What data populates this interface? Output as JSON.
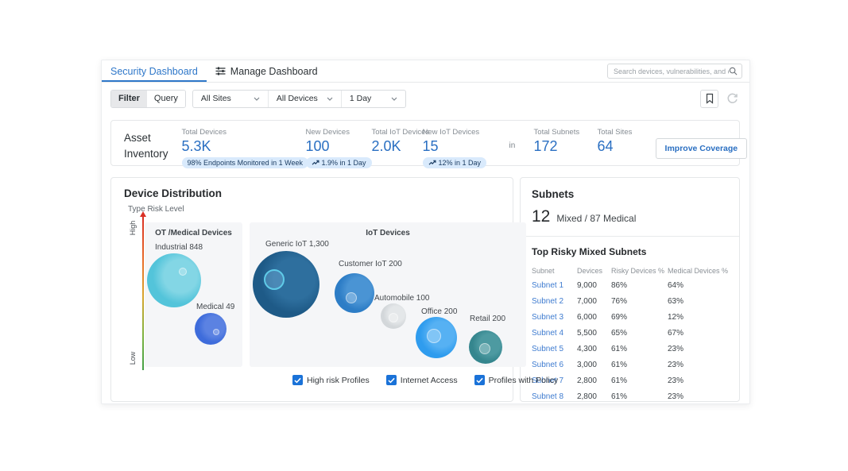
{
  "tabs": {
    "security": "Security Dashboard",
    "manage": "Manage Dashboard"
  },
  "search": {
    "placeholder": "Search devices, vulnerabilities, and external ..."
  },
  "filter_bar": {
    "filter": "Filter",
    "query": "Query",
    "sites": "All Sites",
    "devices": "All Devices",
    "period": "1 Day"
  },
  "asset_inventory": {
    "title": "Asset Inventory",
    "metrics": [
      {
        "label": "Total Devices",
        "value": "5.3K",
        "badge": "98% Endpoints Monitored in 1 Week",
        "trend": false
      },
      {
        "label": "New Devices",
        "value": "100",
        "badge": "1.9% in 1 Day",
        "trend": true
      },
      {
        "label": "Total IoT Devices",
        "value": "2.0K"
      },
      {
        "label": "New IoT Devices",
        "value": "15",
        "badge": "12% in 1 Day",
        "trend": true
      },
      {
        "separator": "in"
      },
      {
        "label": "Total Subnets",
        "value": "172"
      },
      {
        "label": "Total Sites",
        "value": "64"
      }
    ],
    "button": "Improve Coverage",
    "accent_color": "#2a6fc2",
    "badge_bg": "#d9eafc"
  },
  "device_distribution": {
    "title": "Device Distribution",
    "axis_label": "Type Risk Level",
    "axis_high": "High",
    "axis_low": "Low",
    "groups": [
      {
        "name": "OT /Medical Devices",
        "bubbles": [
          {
            "label": "Industrial 848",
            "x": 45,
            "y": 95,
            "size": 68,
            "color": "#53c4da",
            "light": "#83d6e5",
            "label_x": 55,
            "label_y": 82,
            "dot": {
              "x": 40,
              "y": 18,
              "r": 5
            }
          },
          {
            "label": "Medical 49",
            "x": 105,
            "y": 170,
            "size": 40,
            "color": "#3e6cdb",
            "light": "#5b82e2",
            "label_x": 107,
            "label_y": 157,
            "dot": {
              "x": 23,
              "y": 20,
              "r": 4
            }
          }
        ]
      },
      {
        "name": "IoT Devices",
        "bubbles": [
          {
            "label": "Generic IoT 1,300",
            "x": 178,
            "y": 92,
            "size": 84,
            "color": "#1e5a87",
            "light": "#2e6f9e",
            "label_x": 194,
            "label_y": 78,
            "ring": {
              "x": 14,
              "y": 23,
              "size": 26
            }
          },
          {
            "label": "Customer IoT 200",
            "x": 281,
            "y": 120,
            "size": 50,
            "color": "#2d7dc6",
            "light": "#4a94d4",
            "label_x": 286,
            "label_y": 103,
            "dot": {
              "x": 14,
              "y": 24,
              "r": 7
            }
          },
          {
            "label": "Automobile 100",
            "x": 339,
            "y": 158,
            "size": 32,
            "color": "#d3d7da",
            "light": "#e4e7e9",
            "label_x": 331,
            "label_y": 146,
            "dot": {
              "x": 10,
              "y": 12,
              "r": 6
            }
          },
          {
            "label": "Office 200",
            "x": 383,
            "y": 175,
            "size": 52,
            "color": "#2f9cee",
            "light": "#56b1f3",
            "label_x": 390,
            "label_y": 163,
            "dot": {
              "x": 14,
              "y": 15,
              "r": 9
            }
          },
          {
            "label": "Retail 200",
            "x": 450,
            "y": 192,
            "size": 42,
            "color": "#35868e",
            "light": "#4d9aa1",
            "label_x": 451,
            "label_y": 172,
            "dot": {
              "x": 13,
              "y": 16,
              "r": 7
            }
          }
        ]
      }
    ],
    "checkboxes": [
      "High risk Profiles",
      "Internet Access",
      "Profiles with Policy"
    ],
    "checkbox_color": "#1a72d8"
  },
  "subnets": {
    "title": "Subnets",
    "count": "12",
    "summary": "Mixed / 87 Medical",
    "section_title": "Top Risky Mixed Subnets",
    "table": {
      "headers": [
        "Subnet",
        "Devices",
        "Risky Devices %",
        "Medical Devices %"
      ],
      "rows": [
        {
          "subnet": "Subnet 1",
          "devices": "9,000",
          "risky": "86%",
          "medical": "64%"
        },
        {
          "subnet": "Subnet 2",
          "devices": "7,000",
          "risky": "76%",
          "medical": "63%"
        },
        {
          "subnet": "Subnet 3",
          "devices": "6,000",
          "risky": "69%",
          "medical": "12%"
        },
        {
          "subnet": "Subnet 4",
          "devices": "5,500",
          "risky": "65%",
          "medical": "67%"
        },
        {
          "subnet": "Subnet 5",
          "devices": "4,300",
          "risky": "61%",
          "medical": "23%"
        },
        {
          "subnet": "Subnet 6",
          "devices": "3,000",
          "risky": "61%",
          "medical": "23%"
        },
        {
          "subnet": "Subnet 7",
          "devices": "2,800",
          "risky": "61%",
          "medical": "23%"
        },
        {
          "subnet": "Subnet 8",
          "devices": "2,800",
          "risky": "61%",
          "medical": "23%"
        }
      ]
    },
    "link_color": "#3f7cd0"
  },
  "chart_data": {
    "type": "scatter",
    "title": "Device Distribution",
    "ylabel": "Type Risk Level (High to Low)",
    "legend_position": "none",
    "series": [
      {
        "name": "OT /Medical Devices",
        "points": [
          {
            "label": "Industrial",
            "value": 848
          },
          {
            "label": "Medical",
            "value": 49
          }
        ]
      },
      {
        "name": "IoT Devices",
        "points": [
          {
            "label": "Generic IoT",
            "value": 1300
          },
          {
            "label": "Customer IoT",
            "value": 200
          },
          {
            "label": "Automobile",
            "value": 100
          },
          {
            "label": "Office",
            "value": 200
          },
          {
            "label": "Retail",
            "value": 200
          }
        ]
      }
    ]
  }
}
